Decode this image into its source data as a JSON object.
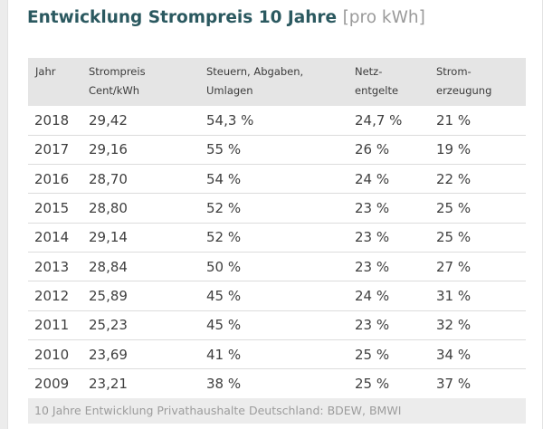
{
  "title": "Entwicklung Strompreis 10 Jahre",
  "title_unit": "[pro kWh]",
  "headers": {
    "jahr": "Jahr",
    "strompreis_1": "Strompreis",
    "strompreis_2": "Cent/kWh",
    "steuern_1": "Steuern, Abgaben,",
    "steuern_2": "Umlagen",
    "netz_1": "Netz-",
    "netz_2": "entgelte",
    "strom_1": "Strom-",
    "strom_2": "erzeugung"
  },
  "rows": [
    {
      "jahr": "2018",
      "preis": "29,42",
      "steuern": "54,3 %",
      "netz": "24,7 %",
      "erzeugung": "21 %"
    },
    {
      "jahr": "2017",
      "preis": "29,16",
      "steuern": "55 %",
      "netz": "26 %",
      "erzeugung": "19 %"
    },
    {
      "jahr": "2016",
      "preis": "28,70",
      "steuern": "54 %",
      "netz": "24 %",
      "erzeugung": "22 %"
    },
    {
      "jahr": "2015",
      "preis": "28,80",
      "steuern": "52 %",
      "netz": "23 %",
      "erzeugung": "25 %"
    },
    {
      "jahr": "2014",
      "preis": "29,14",
      "steuern": "52 %",
      "netz": "23 %",
      "erzeugung": "25 %"
    },
    {
      "jahr": "2013",
      "preis": "28,84",
      "steuern": "50 %",
      "netz": "23 %",
      "erzeugung": "27 %"
    },
    {
      "jahr": "2012",
      "preis": "25,89",
      "steuern": "45 %",
      "netz": "24 %",
      "erzeugung": "31 %"
    },
    {
      "jahr": "2011",
      "preis": "25,23",
      "steuern": "45 %",
      "netz": "23 %",
      "erzeugung": "32 %"
    },
    {
      "jahr": "2010",
      "preis": "23,69",
      "steuern": "41 %",
      "netz": "25 %",
      "erzeugung": "34 %"
    },
    {
      "jahr": "2009",
      "preis": "23,21",
      "steuern": "38 %",
      "netz": "25 %",
      "erzeugung": "37 %"
    }
  ],
  "footer": "10 Jahre Entwicklung Privathaushalte Deutschland: BDEW, BMWI",
  "colors": {
    "title": "#2b5960",
    "header_bg": "#e5e5e5",
    "footer_bg": "#ececec"
  }
}
